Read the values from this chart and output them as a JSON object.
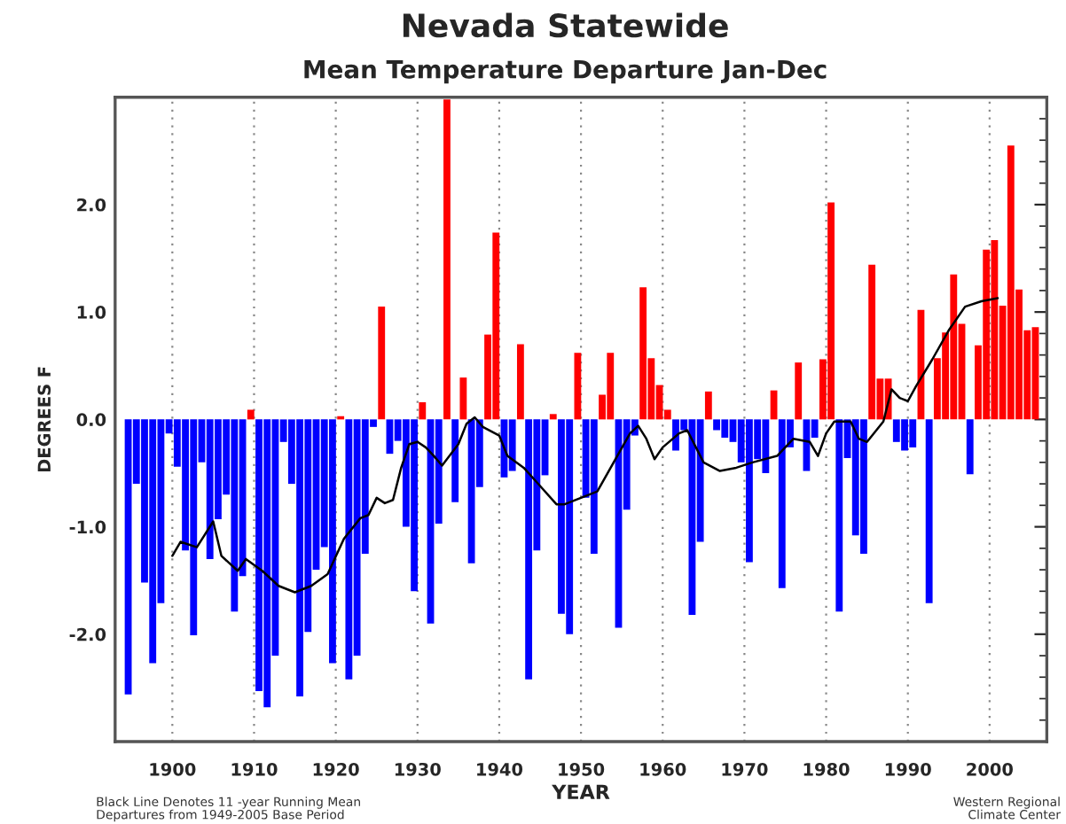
{
  "chart_data": {
    "type": "bar",
    "title": "Nevada Statewide",
    "subtitle": "Mean Temperature Departure Jan-Dec",
    "xlabel": "YEAR",
    "ylabel": "DEGREES F",
    "annotations": [
      "Black Line Denotes 11 -year Running Mean\nDepartures from 1949-2005 Base Period",
      "Western Regional\nClimate Center"
    ],
    "xlim": [
      1893,
      2007
    ],
    "xticks": [
      1900,
      1910,
      1920,
      1930,
      1940,
      1950,
      1960,
      1970,
      1980,
      1990,
      2000
    ],
    "ylim": [
      -3,
      3
    ],
    "yticks": [
      {
        "value": -2,
        "label": "-2.0"
      },
      {
        "value": -1,
        "label": "-1.0"
      },
      {
        "value": 0,
        "label": "0.0"
      },
      {
        "value": 1,
        "label": "1.0"
      },
      {
        "value": 2,
        "label": "2.0"
      }
    ],
    "grid": "x",
    "series": [
      {
        "x": [
          1895,
          1896,
          1897,
          1898,
          1899,
          1900,
          1901,
          1902,
          1903,
          1904,
          1905,
          1906,
          1907,
          1908,
          1909,
          1910,
          1911,
          1912,
          1913,
          1914,
          1915,
          1916,
          1917,
          1918,
          1919,
          1920,
          1921,
          1922,
          1923,
          1924,
          1925,
          1926,
          1927,
          1928,
          1929,
          1930,
          1931,
          1932,
          1933,
          1934,
          1935,
          1936,
          1937,
          1938,
          1939,
          1940,
          1941,
          1942,
          1943,
          1944,
          1945,
          1946,
          1947,
          1948,
          1949,
          1950,
          1951,
          1952,
          1953,
          1954,
          1955,
          1956,
          1957,
          1958,
          1959,
          1960,
          1961,
          1962,
          1963,
          1964,
          1965,
          1966,
          1967,
          1968,
          1969,
          1970,
          1971,
          1972,
          1973,
          1974,
          1975,
          1976,
          1977,
          1978,
          1979,
          1980,
          1981,
          1982,
          1983,
          1984,
          1985,
          1986,
          1987,
          1988,
          1989,
          1990,
          1991,
          1992,
          1993,
          1994,
          1995,
          1996,
          1997,
          1998,
          1999,
          2000,
          2001,
          2002,
          2003,
          2004,
          2005,
          2006
        ],
        "values": [
          -2.56,
          -0.6,
          -1.52,
          -2.27,
          -1.71,
          -0.13,
          -0.44,
          -1.22,
          -2.01,
          -0.4,
          -1.3,
          -0.93,
          -0.7,
          -1.79,
          -1.46,
          0.09,
          -2.53,
          -2.68,
          -2.2,
          -0.21,
          -0.6,
          -2.58,
          -1.98,
          -1.4,
          -1.19,
          -2.27,
          0.03,
          -2.42,
          -2.2,
          -1.25,
          -0.07,
          1.05,
          -0.32,
          -0.2,
          -1.0,
          -1.6,
          0.16,
          -1.9,
          -0.97,
          2.98,
          -0.77,
          0.39,
          -1.34,
          -0.63,
          0.79,
          1.74,
          -0.54,
          -0.48,
          0.7,
          -2.42,
          -1.22,
          -0.52,
          0.05,
          -1.81,
          -2.0,
          0.62,
          -0.73,
          -1.25,
          0.23,
          0.62,
          -1.94,
          -0.84,
          -0.15,
          1.23,
          0.57,
          0.32,
          0.09,
          -0.29,
          -0.1,
          -1.82,
          -1.14,
          0.26,
          -0.1,
          -0.17,
          -0.21,
          -0.4,
          -1.33,
          -0.37,
          -0.5,
          0.27,
          -1.57,
          -0.26,
          0.53,
          -0.48,
          -0.17,
          0.56,
          2.02,
          -1.79,
          -0.36,
          -1.08,
          -1.25,
          1.44,
          0.38,
          0.38,
          -0.21,
          -0.29,
          -0.26,
          1.02,
          -1.71,
          0.57,
          0.81,
          1.35,
          0.89,
          -0.51,
          0.69,
          1.58,
          1.67,
          1.06,
          2.55,
          1.21,
          0.83,
          0.86
        ],
        "colors": [
          "#0000ff",
          "#0000ff",
          "#0000ff",
          "#0000ff",
          "#0000ff",
          "#0000ff",
          "#0000ff",
          "#0000ff",
          "#0000ff",
          "#0000ff",
          "#0000ff",
          "#0000ff",
          "#0000ff",
          "#0000ff",
          "#0000ff",
          "#ff0000",
          "#0000ff",
          "#0000ff",
          "#0000ff",
          "#0000ff",
          "#0000ff",
          "#0000ff",
          "#0000ff",
          "#0000ff",
          "#0000ff",
          "#0000ff",
          "#ff0000",
          "#0000ff",
          "#0000ff",
          "#0000ff",
          "#0000ff",
          "#ff0000",
          "#0000ff",
          "#0000ff",
          "#0000ff",
          "#0000ff",
          "#ff0000",
          "#0000ff",
          "#0000ff",
          "#ff0000",
          "#0000ff",
          "#ff0000",
          "#0000ff",
          "#0000ff",
          "#ff0000",
          "#ff0000",
          "#0000ff",
          "#0000ff",
          "#ff0000",
          "#0000ff",
          "#0000ff",
          "#0000ff",
          "#ff0000",
          "#0000ff",
          "#0000ff",
          "#ff0000",
          "#0000ff",
          "#0000ff",
          "#ff0000",
          "#ff0000",
          "#0000ff",
          "#0000ff",
          "#0000ff",
          "#ff0000",
          "#ff0000",
          "#ff0000",
          "#ff0000",
          "#0000ff",
          "#0000ff",
          "#0000ff",
          "#0000ff",
          "#ff0000",
          "#0000ff",
          "#0000ff",
          "#0000ff",
          "#0000ff",
          "#0000ff",
          "#0000ff",
          "#0000ff",
          "#ff0000",
          "#0000ff",
          "#0000ff",
          "#ff0000",
          "#0000ff",
          "#0000ff",
          "#ff0000",
          "#ff0000",
          "#0000ff",
          "#0000ff",
          "#0000ff",
          "#0000ff",
          "#ff0000",
          "#ff0000",
          "#ff0000",
          "#0000ff",
          "#0000ff",
          "#0000ff",
          "#ff0000",
          "#0000ff",
          "#ff0000",
          "#ff0000",
          "#ff0000",
          "#ff0000",
          "#0000ff",
          "#ff0000",
          "#ff0000",
          "#ff0000",
          "#ff0000",
          "#ff0000",
          "#ff0000",
          "#ff0000",
          "#ff0000"
        ]
      },
      {
        "type": "line",
        "color": "#000000",
        "x": [
          1900,
          1901,
          1903,
          1905,
          1906,
          1908,
          1909,
          1911,
          1913,
          1915,
          1917,
          1919,
          1921,
          1923,
          1924,
          1925,
          1926,
          1927,
          1928,
          1929,
          1930,
          1931,
          1932,
          1933,
          1935,
          1936,
          1937,
          1938,
          1940,
          1941,
          1943,
          1945,
          1947,
          1948,
          1950,
          1952,
          1954,
          1956,
          1957,
          1958,
          1959,
          1960,
          1962,
          1963,
          1965,
          1967,
          1969,
          1971,
          1974,
          1976,
          1978,
          1979,
          1980,
          1981,
          1983,
          1984,
          1985,
          1987,
          1988,
          1989,
          1990,
          1991,
          1993,
          1995,
          1997,
          1999,
          2001
        ],
        "values": [
          -1.27,
          -1.14,
          -1.19,
          -0.95,
          -1.27,
          -1.41,
          -1.3,
          -1.41,
          -1.55,
          -1.61,
          -1.55,
          -1.44,
          -1.11,
          -0.92,
          -0.89,
          -0.73,
          -0.78,
          -0.75,
          -0.45,
          -0.23,
          -0.21,
          -0.26,
          -0.34,
          -0.43,
          -0.23,
          -0.04,
          0.02,
          -0.07,
          -0.15,
          -0.34,
          -0.45,
          -0.62,
          -0.79,
          -0.79,
          -0.73,
          -0.67,
          -0.4,
          -0.13,
          -0.06,
          -0.18,
          -0.37,
          -0.26,
          -0.13,
          -0.1,
          -0.4,
          -0.48,
          -0.45,
          -0.4,
          -0.34,
          -0.18,
          -0.21,
          -0.34,
          -0.13,
          -0.02,
          -0.02,
          -0.18,
          -0.21,
          -0.02,
          0.28,
          0.2,
          0.17,
          0.31,
          0.56,
          0.83,
          1.05,
          1.1,
          1.13
        ]
      }
    ]
  }
}
